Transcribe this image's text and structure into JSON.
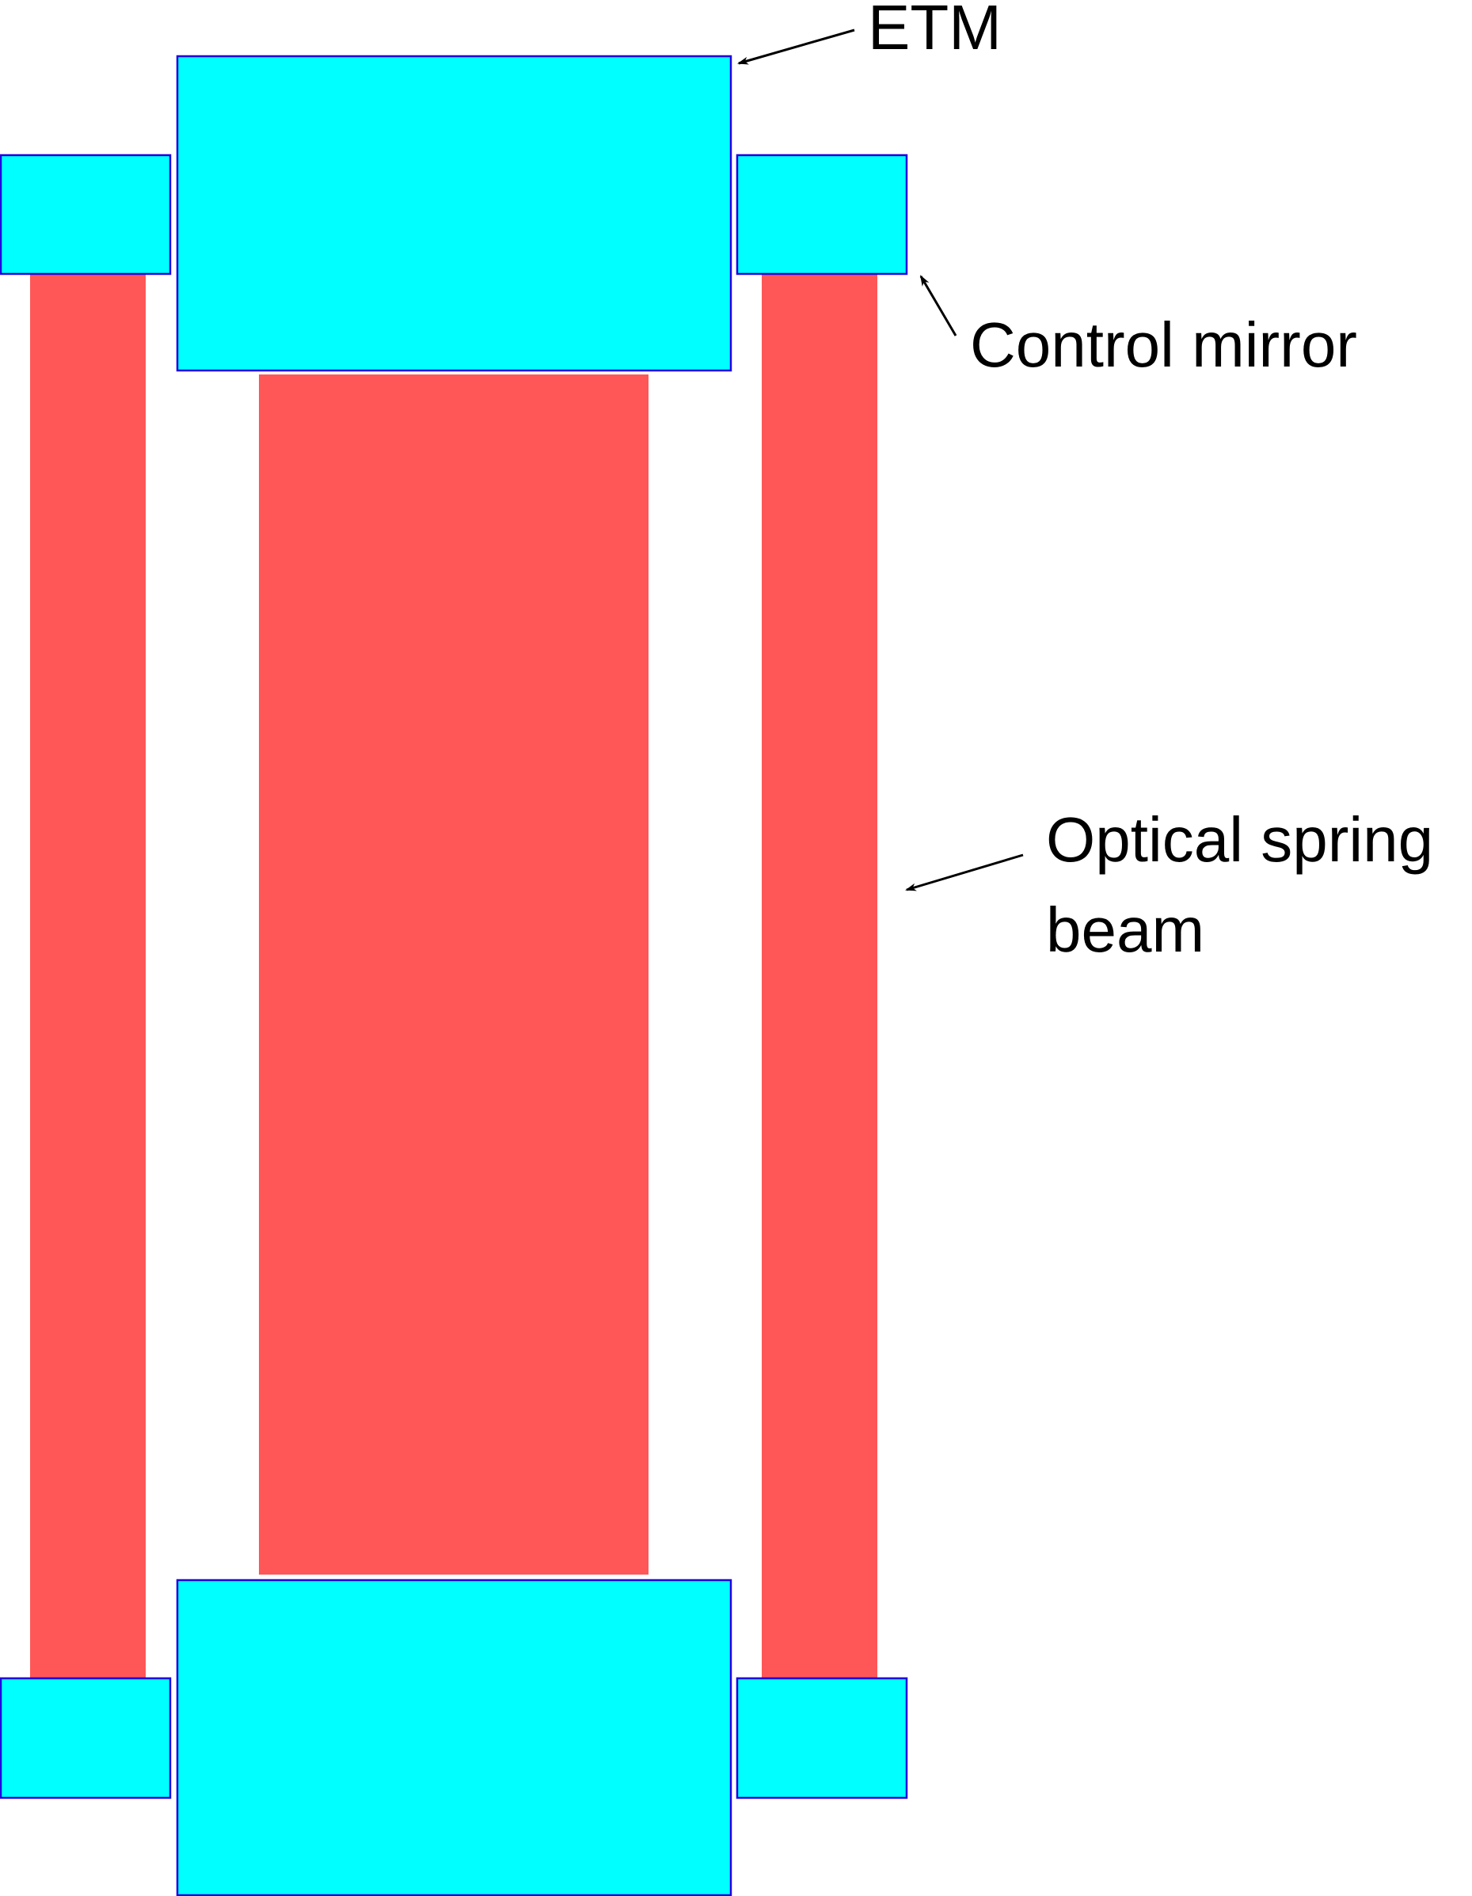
{
  "labels": {
    "etm": "ETM",
    "control_mirror": "Control mirror",
    "optical_spring_line1": "Optical spring",
    "optical_spring_line2": "beam"
  },
  "colors": {
    "mirror_fill": "#00ffff",
    "mirror_stroke": "#2200dd",
    "beam": "#ff5757",
    "text": "#000000",
    "arrow": "#000000"
  }
}
